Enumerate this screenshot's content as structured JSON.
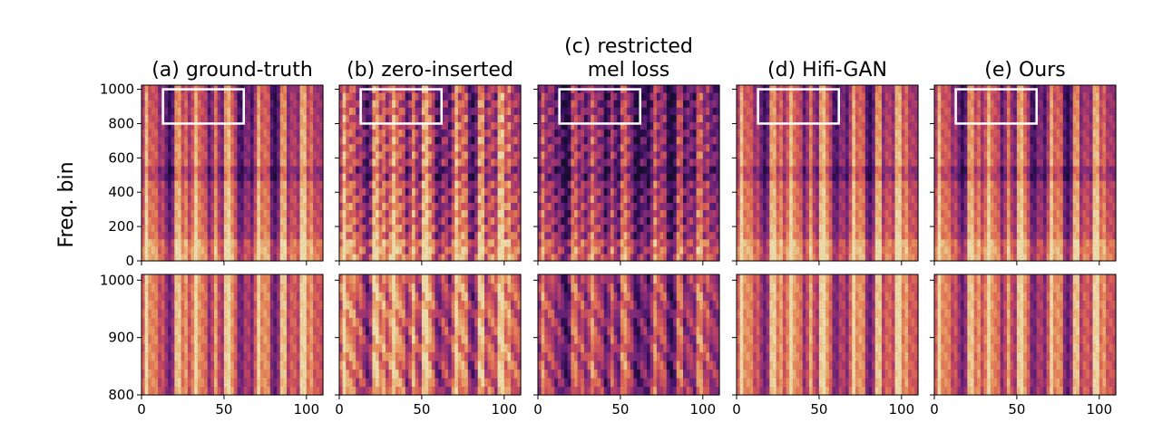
{
  "figure": {
    "ylabel": "Freq. bin"
  },
  "chart_data": [
    {
      "type": "heatmap",
      "row": "full",
      "title_lines": [
        "(a) ground-truth"
      ],
      "variant": "gt",
      "x_range": [
        0,
        110
      ],
      "y_range": [
        0,
        1024
      ],
      "yticks": [
        0,
        200,
        400,
        600,
        800,
        1000
      ],
      "highlight_box": {
        "x": [
          13,
          62
        ],
        "y": [
          800,
          1000
        ]
      }
    },
    {
      "type": "heatmap",
      "row": "full",
      "title_lines": [
        "(b) zero-inserted"
      ],
      "variant": "zero",
      "x_range": [
        0,
        110
      ],
      "y_range": [
        0,
        1024
      ],
      "highlight_box": {
        "x": [
          13,
          62
        ],
        "y": [
          800,
          1000
        ]
      }
    },
    {
      "type": "heatmap",
      "row": "full",
      "title_lines": [
        "(c) restricted",
        "mel loss"
      ],
      "variant": "mel",
      "x_range": [
        0,
        110
      ],
      "y_range": [
        0,
        1024
      ],
      "highlight_box": {
        "x": [
          13,
          62
        ],
        "y": [
          800,
          1000
        ]
      }
    },
    {
      "type": "heatmap",
      "row": "full",
      "title_lines": [
        "(d) Hifi-GAN"
      ],
      "variant": "hifi",
      "x_range": [
        0,
        110
      ],
      "y_range": [
        0,
        1024
      ],
      "highlight_box": {
        "x": [
          13,
          62
        ],
        "y": [
          800,
          1000
        ]
      }
    },
    {
      "type": "heatmap",
      "row": "full",
      "title_lines": [
        "(e) Ours"
      ],
      "variant": "ours",
      "x_range": [
        0,
        110
      ],
      "y_range": [
        0,
        1024
      ],
      "highlight_box": {
        "x": [
          13,
          62
        ],
        "y": [
          800,
          1000
        ]
      }
    },
    {
      "type": "heatmap",
      "row": "zoom",
      "variant": "gt",
      "x_range": [
        0,
        110
      ],
      "y_range": [
        800,
        1010
      ],
      "xticks": [
        0,
        50,
        100
      ],
      "yticks": [
        800,
        900,
        1000
      ]
    },
    {
      "type": "heatmap",
      "row": "zoom",
      "variant": "zero",
      "x_range": [
        0,
        110
      ],
      "y_range": [
        800,
        1010
      ],
      "xticks": [
        0,
        50,
        100
      ]
    },
    {
      "type": "heatmap",
      "row": "zoom",
      "variant": "mel",
      "x_range": [
        0,
        110
      ],
      "y_range": [
        800,
        1010
      ],
      "xticks": [
        0,
        50,
        100
      ]
    },
    {
      "type": "heatmap",
      "row": "zoom",
      "variant": "hifi",
      "x_range": [
        0,
        110
      ],
      "y_range": [
        800,
        1010
      ],
      "xticks": [
        0,
        50,
        100
      ]
    },
    {
      "type": "heatmap",
      "row": "zoom",
      "variant": "ours",
      "x_range": [
        0,
        110
      ],
      "y_range": [
        800,
        1010
      ],
      "xticks": [
        0,
        50,
        100
      ]
    }
  ],
  "colors": {
    "colormap": [
      "#1a0b33",
      "#3b1063",
      "#6a2480",
      "#98337e",
      "#c8466d",
      "#ea6a5c",
      "#f79a63",
      "#fcc98a",
      "#fdebb6"
    ],
    "highlight_box": "#ffffff"
  }
}
